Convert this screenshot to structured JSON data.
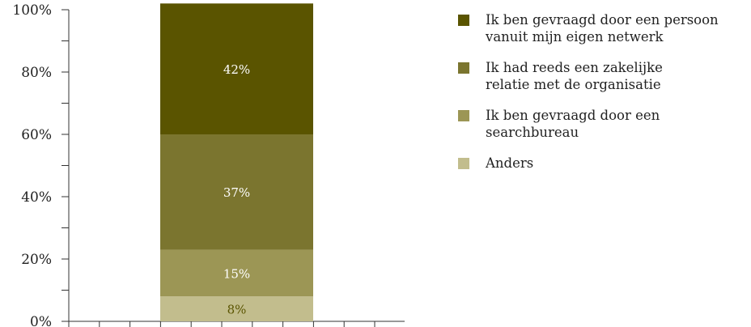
{
  "chart_data": {
    "type": "bar",
    "stacked": true,
    "categories": [
      ""
    ],
    "series": [
      {
        "name": "Anders",
        "values": [
          8
        ],
        "color": "#c2bd8d",
        "label": "8%",
        "label_color": "#5a5400"
      },
      {
        "name": "Ik ben gevraagd door een searchbureau",
        "values": [
          15
        ],
        "color": "#9c9655",
        "label": "15%",
        "label_color": "#ffffff"
      },
      {
        "name": "Ik had reeds een zakelijke relatie met de organisatie",
        "values": [
          37
        ],
        "color": "#7b752f",
        "label": "37%",
        "label_color": "#ffffff"
      },
      {
        "name": "Ik ben gevraagd door een persoon vanuit mijn eigen netwerk",
        "values": [
          42
        ],
        "color": "#5a5400",
        "label": "42%",
        "label_color": "#ffffff"
      }
    ],
    "ylim": [
      0,
      100
    ],
    "y_ticks": [
      "0%",
      "20%",
      "40%",
      "60%",
      "80%",
      "100%"
    ],
    "legend_position": "right",
    "grid": false
  },
  "legend": [
    {
      "lines": [
        "Ik ben gevraagd door een persoon",
        "vanuit mijn eigen netwerk"
      ],
      "color": "#5a5400"
    },
    {
      "lines": [
        "Ik had reeds een zakelijke",
        "relatie met de organisatie"
      ],
      "color": "#7b752f"
    },
    {
      "lines": [
        "Ik ben gevraagd door een",
        "searchbureau"
      ],
      "color": "#9c9655"
    },
    {
      "lines": [
        "Anders"
      ],
      "color": "#c2bd8d"
    }
  ]
}
